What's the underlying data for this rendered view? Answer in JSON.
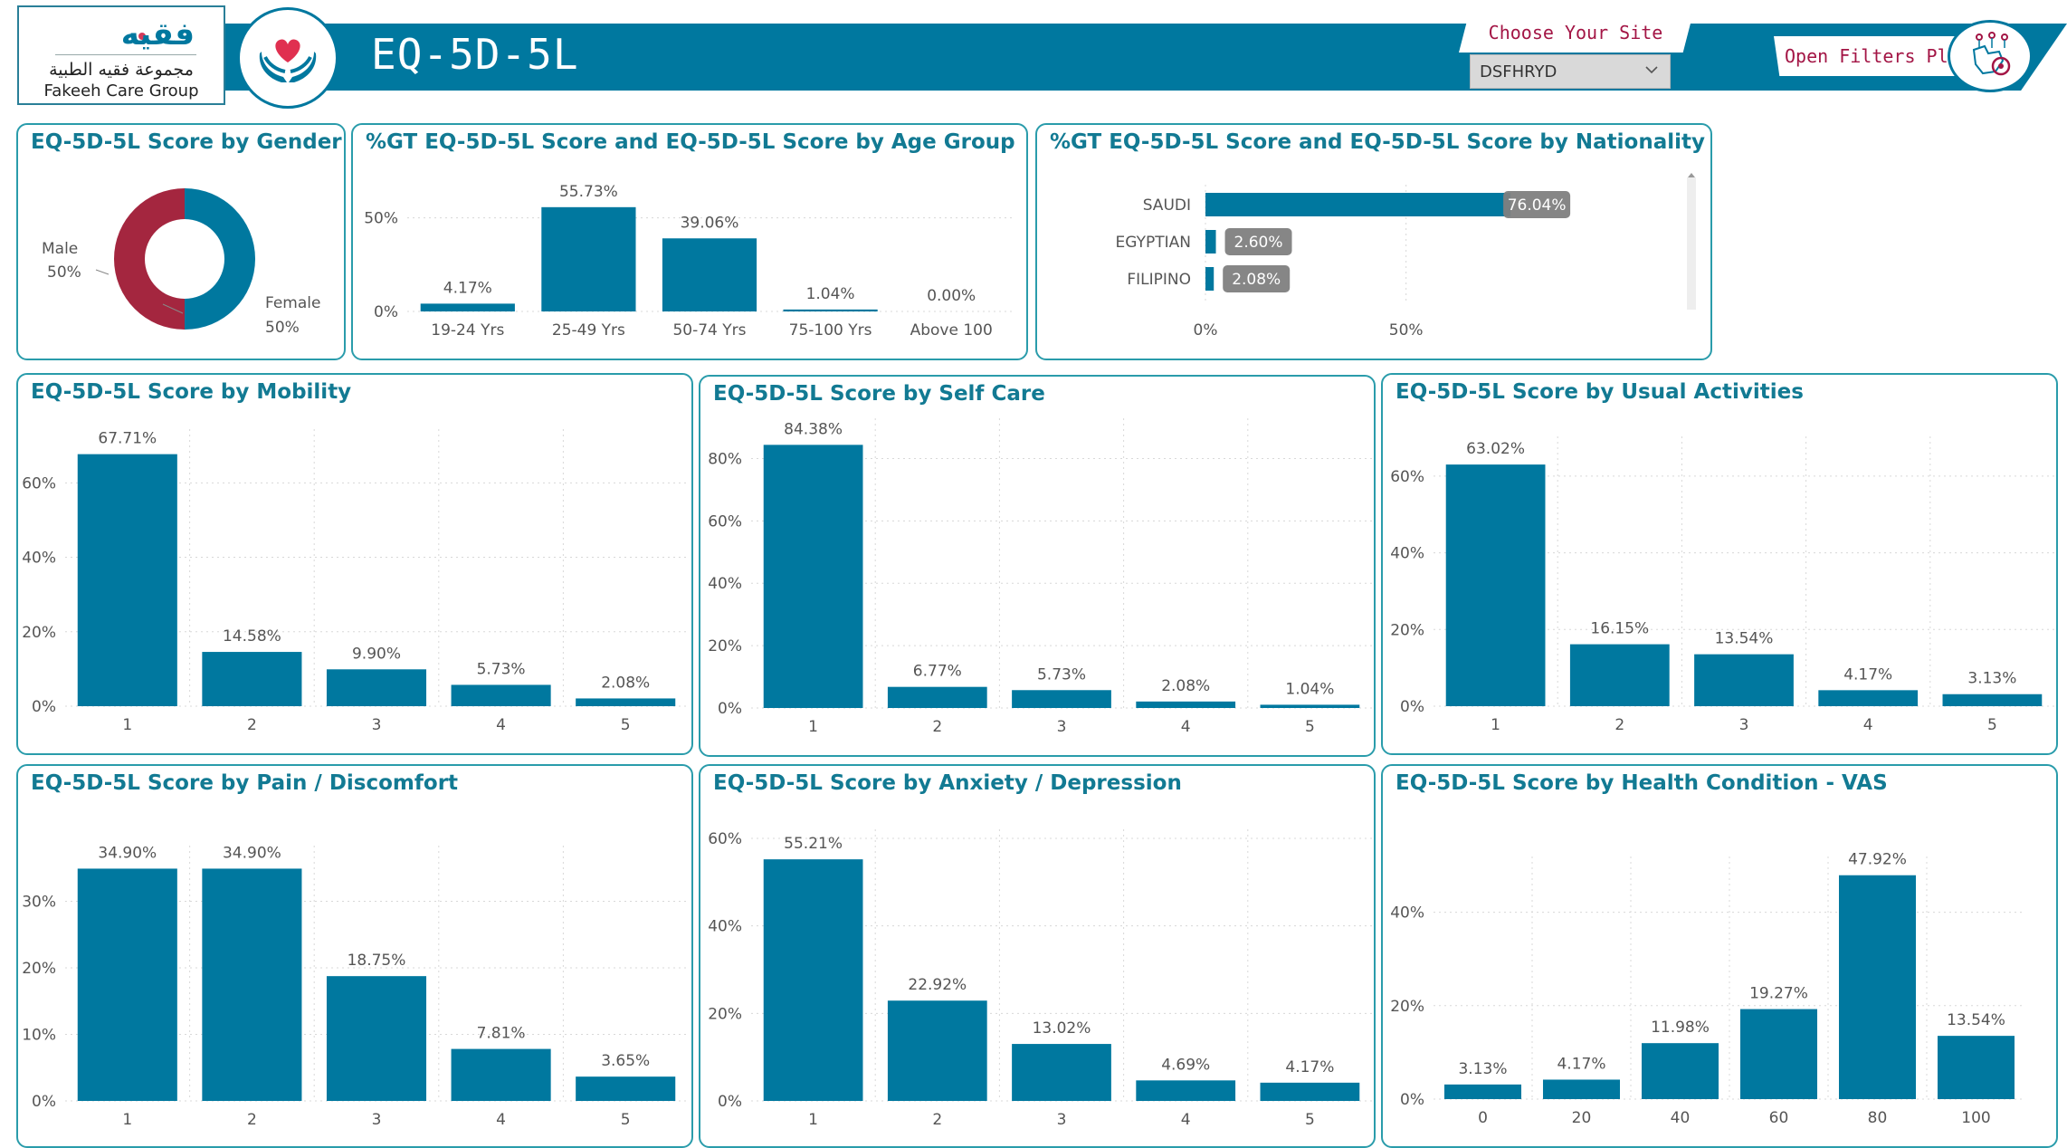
{
  "header": {
    "logo_brand": "فقيه",
    "logo_arabic": "مجموعة فقيه الطبية",
    "logo_english": "Fakeeh Care Group",
    "title": "EQ-5D-5L",
    "site_label": "Choose Your Site",
    "site_value": "DSFHRYD",
    "filters_label": "Open Filters Plane"
  },
  "colors": {
    "bar": "#00789f",
    "female": "#00789f",
    "male": "#a4263f",
    "title": "#127a93",
    "accent": "#a31545",
    "card_border": "#2a9cab"
  },
  "cards": {
    "gender": {
      "title": "EQ-5D-5L Score by Gender",
      "male_label": "Male",
      "male_value": "50%",
      "female_label": "Female",
      "female_value": "50%"
    },
    "age": {
      "title": "%GT EQ-5D-5L Score and EQ-5D-5L Score by Age Group"
    },
    "nationality": {
      "title": "%GT EQ-5D-5L Score and EQ-5D-5L Score by Nationality"
    },
    "mobility": {
      "title": "EQ-5D-5L Score by Mobility"
    },
    "selfcare": {
      "title": "EQ-5D-5L Score by Self Care"
    },
    "usual": {
      "title": "EQ-5D-5L Score by Usual Activities"
    },
    "pain": {
      "title": "EQ-5D-5L Score by Pain / Discomfort"
    },
    "anxiety": {
      "title": "EQ-5D-5L Score by Anxiety / Depression"
    },
    "vas": {
      "title": "EQ-5D-5L Score by Health Condition - VAS"
    }
  },
  "chart_data": [
    {
      "id": "gender",
      "type": "pie",
      "categories": [
        "Female",
        "Male"
      ],
      "values": [
        50,
        50
      ]
    },
    {
      "id": "age",
      "type": "bar",
      "categories": [
        "19-24 Yrs",
        "25-49 Yrs",
        "50-74 Yrs",
        "75-100 Yrs",
        "Above 100"
      ],
      "values": [
        4.17,
        55.73,
        39.06,
        1.04,
        0.0
      ],
      "labels": [
        "4.17%",
        "55.73%",
        "39.06%",
        "1.04%",
        "0.00%"
      ],
      "ylim": [
        0,
        60
      ],
      "yticks": [
        0,
        50
      ],
      "ytick_labels": [
        "0%",
        "50%"
      ]
    },
    {
      "id": "nationality",
      "type": "bar",
      "orientation": "horizontal",
      "categories": [
        "SAUDI",
        "EGYPTIAN",
        "FILIPINO"
      ],
      "values": [
        76.04,
        2.6,
        2.08
      ],
      "labels": [
        "76.04%",
        "2.60%",
        "2.08%"
      ],
      "xlim": [
        0,
        90
      ],
      "xticks": [
        0,
        50
      ],
      "xtick_labels": [
        "0%",
        "50%"
      ]
    },
    {
      "id": "mobility",
      "type": "bar",
      "categories": [
        "1",
        "2",
        "3",
        "4",
        "5"
      ],
      "values": [
        67.71,
        14.58,
        9.9,
        5.73,
        2.08
      ],
      "labels": [
        "67.71%",
        "14.58%",
        "9.90%",
        "5.73%",
        "2.08%"
      ],
      "ylim": [
        0,
        72
      ],
      "yticks": [
        0,
        20,
        40,
        60
      ],
      "ytick_labels": [
        "0%",
        "20%",
        "40%",
        "60%"
      ]
    },
    {
      "id": "selfcare",
      "type": "bar",
      "categories": [
        "1",
        "2",
        "3",
        "4",
        "5"
      ],
      "values": [
        84.38,
        6.77,
        5.73,
        2.08,
        1.04
      ],
      "labels": [
        "84.38%",
        "6.77%",
        "5.73%",
        "2.08%",
        "1.04%"
      ],
      "ylim": [
        0,
        90
      ],
      "yticks": [
        0,
        20,
        40,
        60,
        80
      ],
      "ytick_labels": [
        "0%",
        "20%",
        "40%",
        "60%",
        "80%"
      ]
    },
    {
      "id": "usual",
      "type": "bar",
      "categories": [
        "1",
        "2",
        "3",
        "4",
        "5"
      ],
      "values": [
        63.02,
        16.15,
        13.54,
        4.17,
        3.13
      ],
      "labels": [
        "63.02%",
        "16.15%",
        "13.54%",
        "4.17%",
        "3.13%"
      ],
      "ylim": [
        0,
        68
      ],
      "yticks": [
        0,
        20,
        40,
        60
      ],
      "ytick_labels": [
        "0%",
        "20%",
        "40%",
        "60%"
      ]
    },
    {
      "id": "pain",
      "type": "bar",
      "categories": [
        "1",
        "2",
        "3",
        "4",
        "5"
      ],
      "values": [
        34.9,
        34.9,
        18.75,
        7.81,
        3.65
      ],
      "labels": [
        "34.90%",
        "34.90%",
        "18.75%",
        "7.81%",
        "3.65%"
      ],
      "ylim": [
        0,
        37
      ],
      "yticks": [
        0,
        10,
        20,
        30
      ],
      "ytick_labels": [
        "0%",
        "10%",
        "20%",
        "30%"
      ]
    },
    {
      "id": "anxiety",
      "type": "bar",
      "categories": [
        "1",
        "2",
        "3",
        "4",
        "5"
      ],
      "values": [
        55.21,
        22.92,
        13.02,
        4.69,
        4.17
      ],
      "labels": [
        "55.21%",
        "22.92%",
        "13.02%",
        "4.69%",
        "4.17%"
      ],
      "ylim": [
        0,
        60
      ],
      "yticks": [
        0,
        20,
        40,
        60
      ],
      "ytick_labels": [
        "0%",
        "20%",
        "40%",
        "60%"
      ]
    },
    {
      "id": "vas",
      "type": "bar",
      "categories": [
        "0",
        "20",
        "40",
        "60",
        "80",
        "100"
      ],
      "values": [
        3.13,
        4.17,
        11.98,
        19.27,
        47.92,
        13.54
      ],
      "labels": [
        "3.13%",
        "4.17%",
        "11.98%",
        "19.27%",
        "47.92%",
        "13.54%"
      ],
      "ylim": [
        0,
        50
      ],
      "yticks": [
        0,
        20,
        40
      ],
      "ytick_labels": [
        "0%",
        "20%",
        "40%"
      ]
    }
  ]
}
